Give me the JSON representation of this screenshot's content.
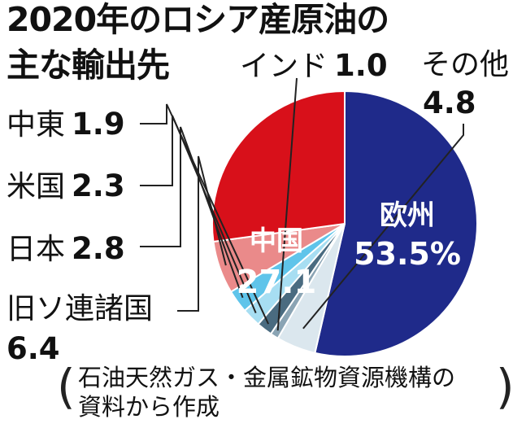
{
  "title_line1": "2020年のロシア産原油の",
  "title_line2": "主な輸出先",
  "source_line1": "石油天然ガス・金属鉱物資源機構の",
  "source_line2": "資料から作成",
  "paren_open": "(",
  "paren_close": ")",
  "chart_data": {
    "type": "pie",
    "unit": "%",
    "title": "2020年のロシア産原油の主な輸出先",
    "slices": [
      {
        "name": "欧州",
        "value_label": "53.5%",
        "value": 53.5,
        "color": "#1f2a8a"
      },
      {
        "name": "その他",
        "value_label": "4.8",
        "value": 4.8,
        "color": "#dbe7ee"
      },
      {
        "name": "インド",
        "value_label": "1.0",
        "value": 1.0,
        "color": "#8aa4b4"
      },
      {
        "name": "中東",
        "value_label": "1.9",
        "value": 1.9,
        "color": "#4a6b80"
      },
      {
        "name": "米国",
        "value_label": "2.3",
        "value": 2.3,
        "color": "#a7def2"
      },
      {
        "name": "日本",
        "value_label": "2.8",
        "value": 2.8,
        "color": "#5fc4ea"
      },
      {
        "name": "旧ソ連諸国",
        "value_label": "6.4",
        "value": 6.4,
        "color": "#ea8a8a"
      },
      {
        "name": "中国",
        "value_label": "27.1",
        "value": 27.1,
        "color": "#d8101a"
      }
    ]
  }
}
